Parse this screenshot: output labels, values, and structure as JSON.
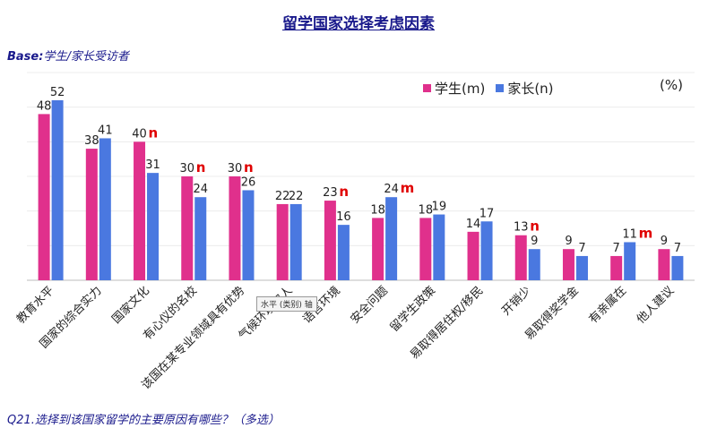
{
  "header": {
    "title": "留学国家选择考虑因素",
    "base_prefix": "Base:",
    "base_text": "学生/家长受访者"
  },
  "footer": {
    "question": "Q21.选择到该国家留学的主要原因有哪些？（多选）"
  },
  "tooltip": "水平 (类别) 轴",
  "unit": "(%)",
  "chart_data": {
    "type": "bar",
    "categories": [
      "教育水平",
      "国家的综合实力",
      "国家文化",
      "有心仪的名校",
      "该国在某专业领域具有优势",
      "气候环境宜人",
      "语言环境",
      "安全问题",
      "留学生政策",
      "易取得居住权/移民",
      "开销少",
      "易取得奖学金",
      "有亲属在",
      "他人建议"
    ],
    "series": [
      {
        "name": "学生(m)",
        "color": "#e0308c",
        "values": [
          48,
          38,
          40,
          30,
          30,
          22,
          23,
          18,
          18,
          14,
          13,
          9,
          7,
          9
        ]
      },
      {
        "name": "家长(n)",
        "color": "#4a78e0",
        "values": [
          52,
          41,
          31,
          24,
          26,
          22,
          16,
          24,
          19,
          17,
          9,
          7,
          11,
          7
        ]
      }
    ],
    "markers": [
      {
        "category": 2,
        "series": 0,
        "text": "n"
      },
      {
        "category": 3,
        "series": 0,
        "text": "n"
      },
      {
        "category": 4,
        "series": 0,
        "text": "n"
      },
      {
        "category": 6,
        "series": 0,
        "text": "n"
      },
      {
        "category": 7,
        "series": 1,
        "text": "m"
      },
      {
        "category": 10,
        "series": 0,
        "text": "n"
      },
      {
        "category": 12,
        "series": 1,
        "text": "m"
      }
    ],
    "marker_color": "#e00000",
    "ylim": [
      0,
      60
    ],
    "grid": true,
    "legend_position": "top-right"
  }
}
